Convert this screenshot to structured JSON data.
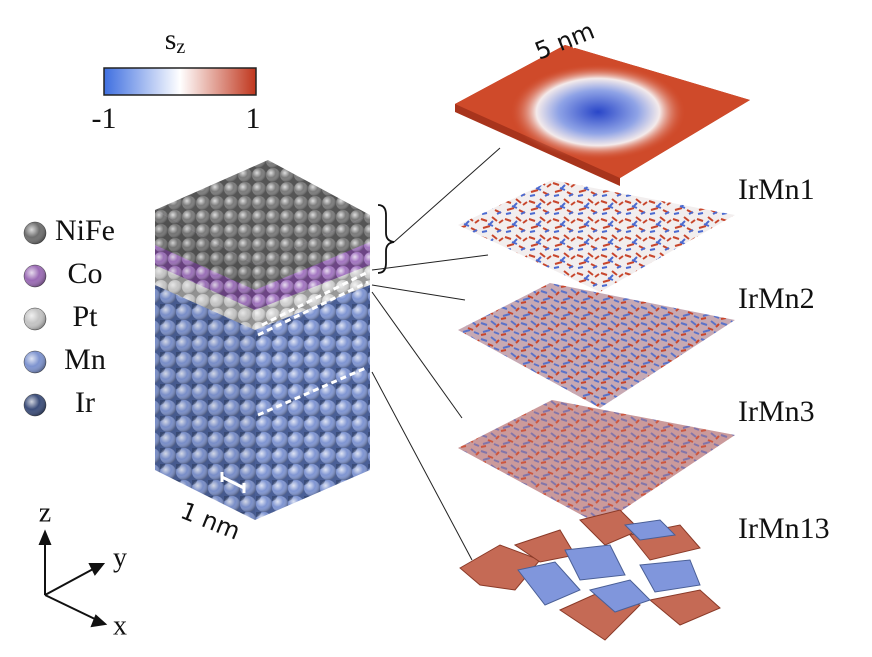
{
  "colorbar": {
    "label": "s",
    "subscript": "z",
    "min": "-1",
    "max": "1"
  },
  "legend": [
    {
      "label": "NiFe",
      "color": "#6e6e6e"
    },
    {
      "label": "Co",
      "color": "#9b6bb5"
    },
    {
      "label": "Pt",
      "color": "#c4c4c4"
    },
    {
      "label": "Mn",
      "color": "#7d93cf"
    },
    {
      "label": "Ir",
      "color": "#3b4d7a"
    }
  ],
  "scale_bars": {
    "layer": "5 nm",
    "crystal": "1 nm"
  },
  "layers": [
    "IrMn1",
    "IrMn2",
    "IrMn3",
    "IrMn13"
  ],
  "axes": {
    "z": "z",
    "y": "y",
    "x": "x"
  }
}
